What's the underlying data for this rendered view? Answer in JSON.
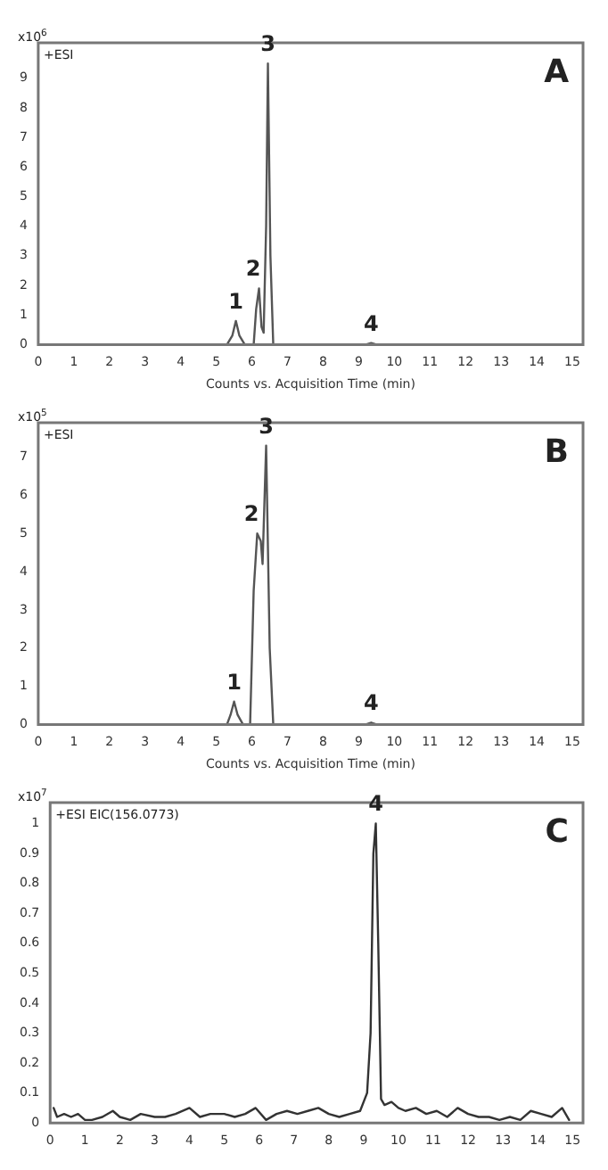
{
  "chart_data": [
    {
      "type": "line",
      "xlabel": "Counts vs. Acquisition Time (min)",
      "annotations": [
        "A",
        "x10$^{6}$",
        "+ESI",
        {
          "text": "1",
          "x": 5.55,
          "y": 0.8
        },
        {
          "text": "2",
          "x": 6.2,
          "y": 1.9
        },
        {
          "text": "3",
          "x": 6.45,
          "y": 9.5
        },
        {
          "text": "4",
          "x": 9.35,
          "y": 0.05
        }
      ],
      "series": [
        {
          "color": "#555555",
          "x": [
            0,
            5.3,
            5.45,
            5.55,
            5.65,
            5.8,
            6.05,
            6.12,
            6.2,
            6.27,
            6.33,
            6.4,
            6.45,
            6.52,
            6.6,
            9.2,
            9.35,
            9.5,
            14.9
          ],
          "values": [
            0,
            0,
            0.3,
            0.8,
            0.3,
            0,
            0,
            1.2,
            1.9,
            0.6,
            0.4,
            4,
            9.5,
            3,
            0,
            0,
            0.05,
            0,
            0
          ]
        }
      ],
      "xlim": [
        0,
        15.3
      ],
      "xticks": [
        0,
        1,
        2,
        3,
        4,
        5,
        6,
        7,
        8,
        9,
        10,
        11,
        12,
        13,
        14,
        15
      ],
      "ylim": [
        0,
        10.2
      ],
      "yticks": [
        0,
        1,
        2,
        3,
        4,
        5,
        6,
        7,
        8,
        9
      ],
      "grid": false,
      "legend": false
    },
    {
      "type": "line",
      "xlabel": "Counts vs. Acquisition Time (min)",
      "annotations": [
        "B",
        "x10$^{5}$",
        "+ESI",
        {
          "text": "1",
          "x": 5.5,
          "y": 0.6
        },
        {
          "text": "2",
          "x": 6.15,
          "y": 5.0
        },
        {
          "text": "3",
          "x": 6.4,
          "y": 7.3
        },
        {
          "text": "4",
          "x": 9.35,
          "y": 0.05
        }
      ],
      "series": [
        {
          "color": "#555555",
          "x": [
            0,
            5.3,
            5.4,
            5.5,
            5.6,
            5.75,
            5.95,
            6.05,
            6.15,
            6.25,
            6.3,
            6.4,
            6.5,
            6.6,
            9.2,
            9.35,
            9.5,
            14.9
          ],
          "values": [
            0,
            0,
            0.25,
            0.6,
            0.25,
            0,
            0,
            3.5,
            5.0,
            4.8,
            4.2,
            7.3,
            2,
            0,
            0,
            0.05,
            0,
            0
          ]
        }
      ],
      "xlim": [
        0,
        15.3
      ],
      "xticks": [
        0,
        1,
        2,
        3,
        4,
        5,
        6,
        7,
        8,
        9,
        10,
        11,
        12,
        13,
        14,
        15
      ],
      "ylim": [
        0,
        7.9
      ],
      "yticks": [
        0,
        1,
        2,
        3,
        4,
        5,
        6,
        7
      ],
      "grid": false,
      "legend": false
    },
    {
      "type": "line",
      "annotations": [
        "C",
        "x10$^{7}$",
        "+ESI EIC(156.0773)",
        {
          "text": "4",
          "x": 9.35,
          "y": 1.0
        }
      ],
      "series": [
        {
          "color": "#333333",
          "x": [
            0.1,
            0.2,
            0.4,
            0.6,
            0.8,
            1.0,
            1.2,
            1.5,
            1.8,
            2.0,
            2.3,
            2.6,
            3.0,
            3.3,
            3.6,
            4.0,
            4.3,
            4.6,
            5.0,
            5.3,
            5.6,
            5.9,
            6.2,
            6.5,
            6.8,
            7.1,
            7.4,
            7.7,
            8.0,
            8.3,
            8.6,
            8.9,
            9.1,
            9.2,
            9.28,
            9.35,
            9.42,
            9.5,
            9.6,
            9.8,
            10.0,
            10.2,
            10.5,
            10.8,
            11.1,
            11.4,
            11.7,
            12.0,
            12.3,
            12.6,
            12.9,
            13.2,
            13.5,
            13.8,
            14.1,
            14.4,
            14.7,
            14.9
          ],
          "values": [
            0.05,
            0.02,
            0.03,
            0.02,
            0.03,
            0.01,
            0.01,
            0.02,
            0.04,
            0.02,
            0.01,
            0.03,
            0.02,
            0.02,
            0.03,
            0.05,
            0.02,
            0.03,
            0.03,
            0.02,
            0.03,
            0.05,
            0.01,
            0.03,
            0.04,
            0.03,
            0.04,
            0.05,
            0.03,
            0.02,
            0.03,
            0.04,
            0.1,
            0.3,
            0.9,
            1.0,
            0.6,
            0.08,
            0.06,
            0.07,
            0.05,
            0.04,
            0.05,
            0.03,
            0.04,
            0.02,
            0.05,
            0.03,
            0.02,
            0.02,
            0.01,
            0.02,
            0.01,
            0.04,
            0.03,
            0.02,
            0.05,
            0.01
          ]
        }
      ],
      "xlim": [
        0,
        15.3
      ],
      "xticks": [
        0,
        1,
        2,
        3,
        4,
        5,
        6,
        7,
        8,
        9,
        10,
        11,
        12,
        13,
        14,
        15
      ],
      "ylim": [
        0,
        1.07
      ],
      "yticks": [
        0,
        0.1,
        0.2,
        0.3,
        0.4,
        0.5,
        0.6,
        0.7,
        0.8,
        0.9,
        1
      ],
      "grid": false,
      "legend": false
    }
  ]
}
